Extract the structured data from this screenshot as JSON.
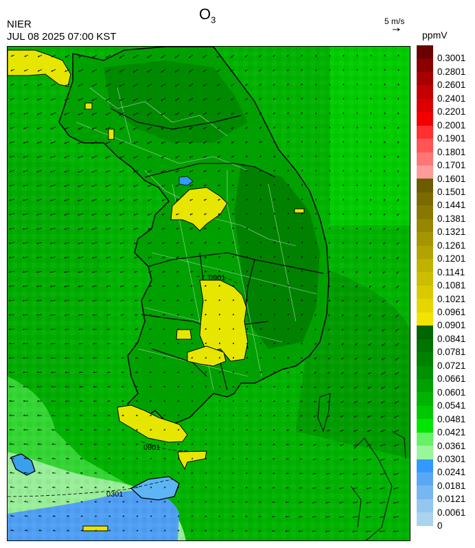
{
  "title": {
    "main": "O",
    "sub": "3"
  },
  "header": {
    "agency": "NIER",
    "datetime": "JUL 08 2025 07:00 KST",
    "wind_reference": "5 m/s",
    "unit": "ppmV"
  },
  "map": {
    "contour_labels": [
      "0901",
      "0901",
      "0301"
    ],
    "wind_arrow_icon": "arrow-right-icon"
  },
  "colorbar": {
    "labels": [
      "0.3001",
      "0.2801",
      "0.2601",
      "0.2401",
      "0.2201",
      "0.2001",
      "0.1901",
      "0.1801",
      "0.1701",
      "0.1601",
      "0.1501",
      "0.1441",
      "0.1381",
      "0.1321",
      "0.1261",
      "0.1201",
      "0.1141",
      "0.1081",
      "0.1021",
      "0.0961",
      "0.0901",
      "0.0841",
      "0.0781",
      "0.0721",
      "0.0661",
      "0.0601",
      "0.0541",
      "0.0481",
      "0.0421",
      "0.0361",
      "0.0301",
      "0.0241",
      "0.0181",
      "0.0121",
      "0.0061",
      "0"
    ],
    "colors": [
      "#6a0000",
      "#8b0000",
      "#a80000",
      "#c40000",
      "#dd0000",
      "#f20000",
      "#ff3030",
      "#ff5555",
      "#ff7676",
      "#ff9a9a",
      "#6b5c00",
      "#7a6a00",
      "#887800",
      "#978600",
      "#a59500",
      "#b3a300",
      "#c1b200",
      "#cdbd00",
      "#dac900",
      "#e6d600",
      "#f2e400",
      "#006400",
      "#007300",
      "#008200",
      "#009100",
      "#00a000",
      "#00b300",
      "#00c800",
      "#00e600",
      "#66f266",
      "#99f799",
      "#3399ff",
      "#5aa8f5",
      "#76b7f2",
      "#93c7ef",
      "#a8d4ee"
    ]
  }
}
